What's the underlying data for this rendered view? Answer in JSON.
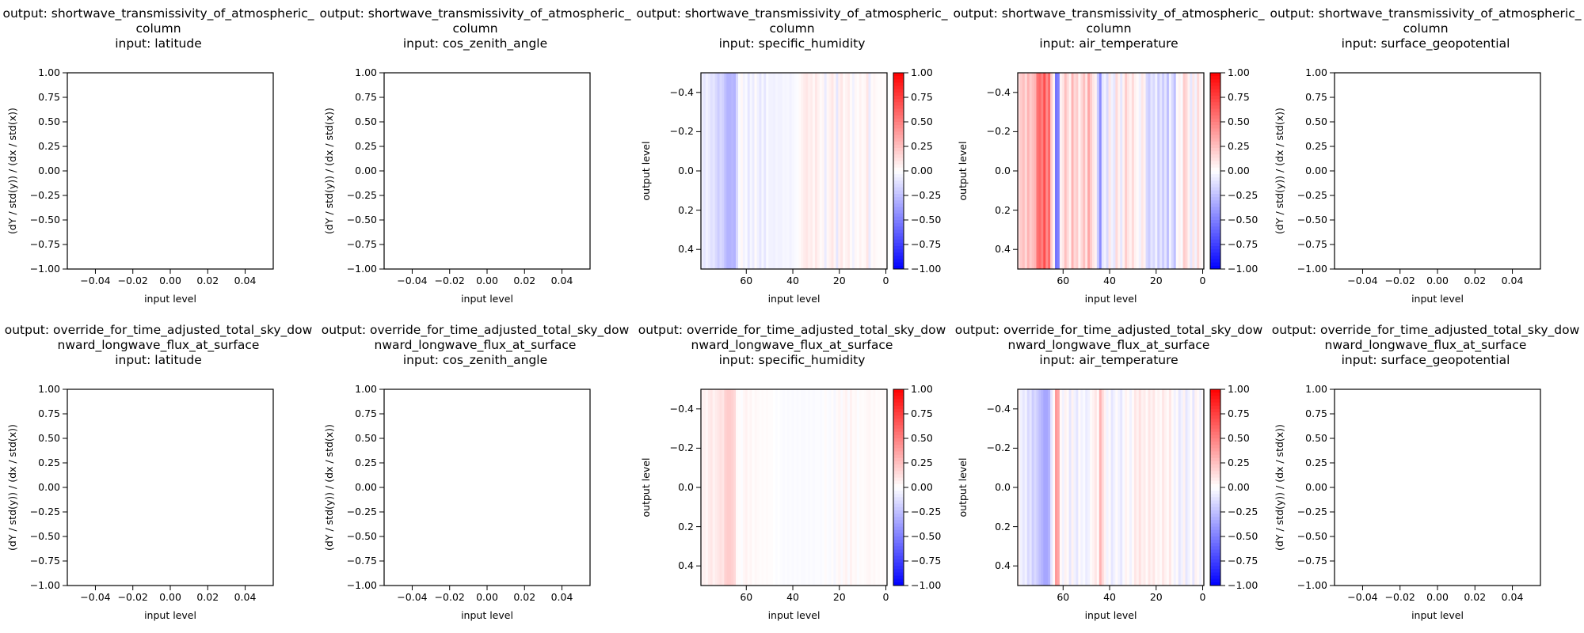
{
  "chart_data": [
    {
      "type": "line",
      "title_output": "output: shortwave_transmissivity_of_atmospheric_column",
      "title_input": "input: latitude",
      "xlabel": "input level",
      "ylabel": "(dY / std(y)) / (dx / std(x))",
      "xticks": [
        "−0.04",
        "−0.02",
        "0.00",
        "0.02",
        "0.04"
      ],
      "yticks": [
        "−1.00",
        "−0.75",
        "−0.50",
        "−0.25",
        "0.00",
        "0.25",
        "0.50",
        "0.75",
        "1.00"
      ],
      "xlim": [
        -0.055,
        0.055
      ],
      "ylim": [
        -1,
        1
      ]
    },
    {
      "type": "line",
      "title_output": "output: shortwave_transmissivity_of_atmospheric_column",
      "title_input": "input: cos_zenith_angle",
      "xlabel": "input level",
      "ylabel": "(dY / std(y)) / (dx / std(x))",
      "xticks": [
        "−0.04",
        "−0.02",
        "0.00",
        "0.02",
        "0.04"
      ],
      "yticks": [
        "−1.00",
        "−0.75",
        "−0.50",
        "−0.25",
        "0.00",
        "0.25",
        "0.50",
        "0.75",
        "1.00"
      ],
      "xlim": [
        -0.055,
        0.055
      ],
      "ylim": [
        -1,
        1
      ]
    },
    {
      "type": "heatmap",
      "title_output": "output: shortwave_transmissivity_of_atmospheric_column",
      "title_input": "input: specific_humidity",
      "xlabel": "input level",
      "ylabel": "output level",
      "xticks": [
        "60",
        "40",
        "20",
        "0"
      ],
      "yticks": [
        "−0.4",
        "−0.2",
        "0.0",
        "0.2",
        "0.4"
      ],
      "xlim": [
        79.5,
        -0.5
      ],
      "ylim": [
        0.5,
        -0.5
      ],
      "colorbar_ticks": [
        "−1.00",
        "−0.75",
        "−0.50",
        "−0.25",
        "0.00",
        "0.25",
        "0.50",
        "0.75",
        "1.00"
      ],
      "clim": [
        -1,
        1
      ],
      "colormap": "bwr",
      "values_by_level_desc": [
        -0.05,
        -0.1,
        -0.05,
        -0.08,
        -0.12,
        -0.1,
        -0.15,
        -0.2,
        -0.15,
        -0.18,
        -0.25,
        -0.3,
        -0.3,
        -0.28,
        -0.3,
        -0.15,
        -0.02,
        0.03,
        -0.05,
        -0.02,
        -0.1,
        -0.03,
        -0.08,
        0.02,
        -0.05,
        -0.1,
        -0.03,
        -0.1,
        -0.02,
        -0.05,
        -0.05,
        -0.06,
        -0.04,
        -0.05,
        -0.05,
        -0.03,
        -0.04,
        -0.03,
        -0.05,
        -0.03,
        -0.02,
        -0.01,
        0.02,
        0.05,
        0.08,
        0.1,
        0.06,
        0.08,
        0.03,
        0.1,
        0.05,
        0.02,
        0.04,
        -0.08,
        0.03,
        0.06,
        0.1,
        0.04,
        -0.1,
        0.06,
        0.1,
        0.02,
        0.05,
        0.08,
        0.02,
        -0.05,
        0.03,
        0.01,
        0.05,
        0.02,
        0.03,
        0.1,
        -0.08,
        0.02,
        0.04,
        0.02,
        0.01,
        0.02,
        0.01,
        0.02
      ]
    },
    {
      "type": "heatmap",
      "title_output": "output: shortwave_transmissivity_of_atmospheric_column",
      "title_input": "input: air_temperature",
      "xlabel": "input level",
      "ylabel": "output level",
      "xticks": [
        "60",
        "40",
        "20",
        "0"
      ],
      "yticks": [
        "−0.4",
        "−0.2",
        "0.0",
        "0.2",
        "0.4"
      ],
      "xlim": [
        79.5,
        -0.5
      ],
      "ylim": [
        0.5,
        -0.5
      ],
      "colorbar_ticks": [
        "−1.00",
        "−0.75",
        "−0.50",
        "−0.25",
        "0.00",
        "0.25",
        "0.50",
        "0.75",
        "1.00"
      ],
      "clim": [
        -1,
        1
      ],
      "colormap": "bwr",
      "values_by_level_desc": [
        0.15,
        0.2,
        0.25,
        0.15,
        0.3,
        0.2,
        0.25,
        0.3,
        0.55,
        0.6,
        0.5,
        0.7,
        0.45,
        0.6,
        0.2,
        0.05,
        -0.55,
        -0.5,
        0.05,
        0.1,
        0.25,
        0.15,
        0.05,
        0.3,
        0.15,
        0.2,
        0.05,
        0.15,
        0.25,
        0.1,
        0.35,
        0.2,
        0.1,
        0.05,
        -0.2,
        -0.45,
        -0.1,
        -0.05,
        -0.15,
        0.1,
        -0.05,
        -0.1,
        0.15,
        0.05,
        -0.1,
        0.05,
        0.2,
        0.1,
        0.05,
        0.15,
        0.05,
        0.02,
        -0.05,
        0.1,
        0.05,
        -0.15,
        -0.2,
        -0.1,
        -0.15,
        -0.05,
        -0.2,
        -0.1,
        -0.2,
        -0.1,
        -0.25,
        -0.05,
        -0.15,
        -0.25,
        0.02,
        0.05,
        -0.02,
        0.2,
        0.15,
        0.05,
        -0.1,
        0.1,
        -0.05,
        0.15,
        0.05,
        0.02
      ]
    },
    {
      "type": "line",
      "title_output": "output: shortwave_transmissivity_of_atmospheric_column",
      "title_input": "input: surface_geopotential",
      "xlabel": "input level",
      "ylabel": "(dY / std(y)) / (dx / std(x))",
      "xticks": [
        "−0.04",
        "−0.02",
        "0.00",
        "0.02",
        "0.04"
      ],
      "yticks": [
        "−1.00",
        "−0.75",
        "−0.50",
        "−0.25",
        "0.00",
        "0.25",
        "0.50",
        "0.75",
        "1.00"
      ],
      "xlim": [
        -0.055,
        0.055
      ],
      "ylim": [
        -1,
        1
      ]
    },
    {
      "type": "line",
      "title_output": "output: override_for_time_adjusted_total_sky_downward_longwave_flux_at_surface",
      "title_input": "input: latitude",
      "xlabel": "input level",
      "ylabel": "(dY / std(y)) / (dx / std(x))",
      "xticks": [
        "−0.04",
        "−0.02",
        "0.00",
        "0.02",
        "0.04"
      ],
      "yticks": [
        "−1.00",
        "−0.75",
        "−0.50",
        "−0.25",
        "0.00",
        "0.25",
        "0.50",
        "0.75",
        "1.00"
      ],
      "xlim": [
        -0.055,
        0.055
      ],
      "ylim": [
        -1,
        1
      ]
    },
    {
      "type": "line",
      "title_output": "output: override_for_time_adjusted_total_sky_downward_longwave_flux_at_surface",
      "title_input": "input: cos_zenith_angle",
      "xlabel": "input level",
      "ylabel": "(dY / std(y)) / (dx / std(x))",
      "xticks": [
        "−0.04",
        "−0.02",
        "0.00",
        "0.02",
        "0.04"
      ],
      "yticks": [
        "−1.00",
        "−0.75",
        "−0.50",
        "−0.25",
        "0.00",
        "0.25",
        "0.50",
        "0.75",
        "1.00"
      ],
      "xlim": [
        -0.055,
        0.055
      ],
      "ylim": [
        -1,
        1
      ]
    },
    {
      "type": "heatmap",
      "title_output": "output: override_for_time_adjusted_total_sky_downward_longwave_flux_at_surface",
      "title_input": "input: specific_humidity",
      "xlabel": "input level",
      "ylabel": "output level",
      "xticks": [
        "60",
        "40",
        "20",
        "0"
      ],
      "yticks": [
        "−0.4",
        "−0.2",
        "0.0",
        "0.2",
        "0.4"
      ],
      "xlim": [
        79.5,
        -0.5
      ],
      "ylim": [
        0.5,
        -0.5
      ],
      "colorbar_ticks": [
        "−1.00",
        "−0.75",
        "−0.50",
        "−0.25",
        "0.00",
        "0.25",
        "0.50",
        "0.75",
        "1.00"
      ],
      "clim": [
        -1,
        1
      ],
      "colormap": "bwr",
      "values_by_level_desc": [
        0.04,
        0.06,
        0.03,
        0.08,
        0.1,
        0.05,
        0.08,
        0.1,
        0.12,
        0.1,
        0.18,
        0.2,
        0.2,
        0.18,
        0.15,
        0.02,
        0.01,
        -0.01,
        0.03,
        0.05,
        0.02,
        0.04,
        0.01,
        0.03,
        0.02,
        0.01,
        0.02,
        0.01,
        0.02,
        0.01,
        0.01,
        0.0,
        -0.01,
        0.0,
        -0.01,
        -0.02,
        -0.01,
        -0.02,
        -0.01,
        -0.02,
        -0.01,
        -0.02,
        -0.01,
        -0.02,
        -0.02,
        -0.01,
        -0.02,
        -0.01,
        -0.02,
        -0.01,
        -0.01,
        -0.02,
        -0.01,
        0.02,
        -0.01,
        -0.02,
        0.01,
        -0.03,
        0.02,
        0.04,
        -0.02,
        0.03,
        0.05,
        -0.02,
        0.06,
        0.02,
        0.03,
        -0.01,
        0.02,
        0.01,
        0.02,
        0.03,
        0.04,
        0.02,
        0.03,
        0.01,
        0.02,
        0.01,
        0.02,
        0.01
      ]
    },
    {
      "type": "heatmap",
      "title_output": "output: override_for_time_adjusted_total_sky_downward_longwave_flux_at_surface",
      "title_input": "input: air_temperature",
      "xlabel": "input level",
      "ylabel": "output level",
      "xticks": [
        "60",
        "40",
        "20",
        "0"
      ],
      "yticks": [
        "−0.4",
        "−0.2",
        "0.0",
        "0.2",
        "0.4"
      ],
      "xlim": [
        79.5,
        -0.5
      ],
      "ylim": [
        0.5,
        -0.5
      ],
      "colorbar_ticks": [
        "−1.00",
        "−0.75",
        "−0.50",
        "−0.25",
        "0.00",
        "0.25",
        "0.50",
        "0.75",
        "1.00"
      ],
      "clim": [
        -1,
        1
      ],
      "colormap": "bwr",
      "values_by_level_desc": [
        0.05,
        -0.05,
        -0.1,
        -0.05,
        -0.15,
        -0.1,
        -0.2,
        -0.15,
        -0.2,
        -0.25,
        -0.3,
        -0.35,
        -0.35,
        -0.3,
        -0.1,
        0.02,
        0.4,
        0.35,
        0.02,
        -0.05,
        0.05,
        0.02,
        -0.1,
        0.05,
        -0.05,
        -0.1,
        0.02,
        -0.05,
        -0.02,
        -0.08,
        -0.05,
        0.02,
        0.05,
        0.1,
        0.02,
        0.3,
        0.15,
        0.05,
        -0.05,
        0.02,
        -0.1,
        -0.05,
        0.02,
        -0.05,
        -0.1,
        -0.02,
        0.05,
        0.02,
        -0.05,
        0.02,
        0.1,
        0.05,
        0.12,
        0.05,
        0.08,
        0.02,
        0.1,
        0.05,
        0.1,
        0.02,
        0.05,
        0.02,
        0.1,
        0.05,
        0.02,
        0.1,
        0.02,
        -0.05,
        0.02,
        -0.1,
        -0.05,
        0.05,
        -0.1,
        -0.05,
        0.02,
        -0.1,
        0.05,
        0.02,
        -0.05,
        0.02
      ]
    },
    {
      "type": "line",
      "title_output": "output: override_for_time_adjusted_total_sky_downward_longwave_flux_at_surface",
      "title_input": "input: surface_geopotential",
      "xlabel": "input level",
      "ylabel": "(dY / std(y)) / (dx / std(x))",
      "xticks": [
        "−0.04",
        "−0.02",
        "0.00",
        "0.02",
        "0.04"
      ],
      "yticks": [
        "−1.00",
        "−0.75",
        "−0.50",
        "−0.25",
        "0.00",
        "0.25",
        "0.50",
        "0.75",
        "1.00"
      ],
      "xlim": [
        -0.055,
        0.055
      ],
      "ylim": [
        -1,
        1
      ]
    }
  ]
}
